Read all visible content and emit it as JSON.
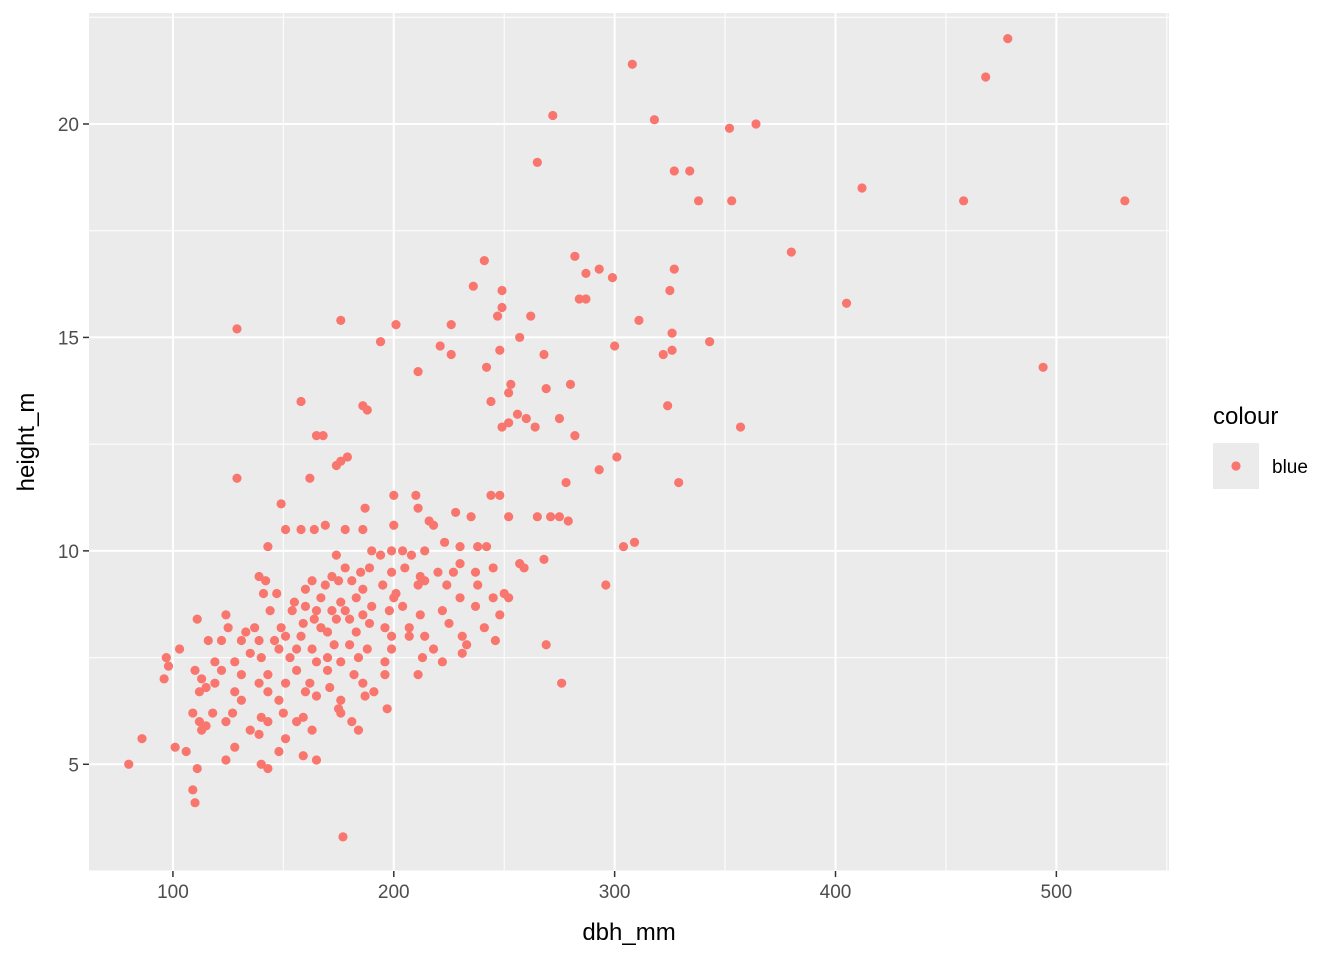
{
  "chart_data": {
    "type": "scatter",
    "xlabel": "dbh_mm",
    "ylabel": "height_m",
    "xlim": [
      62,
      551
    ],
    "ylim": [
      2.5,
      22.6
    ],
    "x_ticks": [
      100,
      200,
      300,
      400,
      500
    ],
    "x_tick_labels": [
      "100",
      "200",
      "300",
      "400",
      "500"
    ],
    "y_ticks": [
      5,
      10,
      15,
      20
    ],
    "y_tick_labels": [
      "5",
      "10",
      "15",
      "20"
    ],
    "grid": true,
    "legend": {
      "title": "colour",
      "placement": "right",
      "entries": [
        {
          "label": "blue",
          "color": "#f8766d"
        }
      ]
    },
    "point_color": "#f8766d",
    "panel_background": "#ebebeb",
    "grid_color": "#ffffff",
    "series": [
      {
        "points": [
          [
            478,
            22.0
          ],
          [
            308,
            21.4
          ],
          [
            468,
            21.1
          ],
          [
            272,
            20.2
          ],
          [
            318,
            20.1
          ],
          [
            364,
            20.0
          ],
          [
            352,
            19.9
          ],
          [
            265,
            19.1
          ],
          [
            327,
            18.9
          ],
          [
            334,
            18.9
          ],
          [
            412,
            18.5
          ],
          [
            338,
            18.2
          ],
          [
            353,
            18.2
          ],
          [
            458,
            18.2
          ],
          [
            531,
            18.2
          ],
          [
            380,
            17.0
          ],
          [
            282,
            16.9
          ],
          [
            241,
            16.8
          ],
          [
            293,
            16.6
          ],
          [
            327,
            16.6
          ],
          [
            287,
            16.5
          ],
          [
            299,
            16.4
          ],
          [
            236,
            16.2
          ],
          [
            249,
            16.1
          ],
          [
            325,
            16.1
          ],
          [
            284,
            15.9
          ],
          [
            287,
            15.9
          ],
          [
            405,
            15.8
          ],
          [
            249,
            15.7
          ],
          [
            247,
            15.5
          ],
          [
            262,
            15.5
          ],
          [
            311,
            15.4
          ],
          [
            176,
            15.4
          ],
          [
            201,
            15.3
          ],
          [
            226,
            15.3
          ],
          [
            129,
            15.2
          ],
          [
            326,
            15.1
          ],
          [
            257,
            15.0
          ],
          [
            194,
            14.9
          ],
          [
            343,
            14.9
          ],
          [
            300,
            14.8
          ],
          [
            221,
            14.8
          ],
          [
            326,
            14.7
          ],
          [
            248,
            14.7
          ],
          [
            268,
            14.6
          ],
          [
            226,
            14.6
          ],
          [
            322,
            14.6
          ],
          [
            242,
            14.3
          ],
          [
            211,
            14.2
          ],
          [
            494,
            14.3
          ],
          [
            280,
            13.9
          ],
          [
            253,
            13.9
          ],
          [
            252,
            13.7
          ],
          [
            269,
            13.8
          ],
          [
            158,
            13.5
          ],
          [
            244,
            13.5
          ],
          [
            186,
            13.4
          ],
          [
            188,
            13.3
          ],
          [
            324,
            13.4
          ],
          [
            256,
            13.2
          ],
          [
            260,
            13.1
          ],
          [
            275,
            13.1
          ],
          [
            357,
            12.9
          ],
          [
            252,
            13.0
          ],
          [
            249,
            12.9
          ],
          [
            264,
            12.9
          ],
          [
            168,
            12.7
          ],
          [
            165,
            12.7
          ],
          [
            282,
            12.7
          ],
          [
            301,
            12.2
          ],
          [
            179,
            12.2
          ],
          [
            176,
            12.1
          ],
          [
            174,
            12.0
          ],
          [
            293,
            11.9
          ],
          [
            162,
            11.7
          ],
          [
            129,
            11.7
          ],
          [
            329,
            11.6
          ],
          [
            278,
            11.6
          ],
          [
            149,
            11.1
          ],
          [
            200,
            11.3
          ],
          [
            210,
            11.3
          ],
          [
            244,
            11.3
          ],
          [
            248,
            11.3
          ],
          [
            211,
            11.0
          ],
          [
            187,
            11.0
          ],
          [
            228,
            10.9
          ],
          [
            235,
            10.8
          ],
          [
            265,
            10.8
          ],
          [
            271,
            10.8
          ],
          [
            275,
            10.8
          ],
          [
            252,
            10.8
          ],
          [
            279,
            10.7
          ],
          [
            218,
            10.6
          ],
          [
            216,
            10.7
          ],
          [
            200,
            10.6
          ],
          [
            169,
            10.6
          ],
          [
            178,
            10.5
          ],
          [
            151,
            10.5
          ],
          [
            164,
            10.5
          ],
          [
            158,
            10.5
          ],
          [
            186,
            10.5
          ],
          [
            309,
            10.2
          ],
          [
            304,
            10.1
          ],
          [
            238,
            10.1
          ],
          [
            223,
            10.2
          ],
          [
            230,
            10.1
          ],
          [
            143,
            10.1
          ],
          [
            204,
            10.0
          ],
          [
            199,
            10.0
          ],
          [
            208,
            9.9
          ],
          [
            242,
            10.1
          ],
          [
            174,
            9.9
          ],
          [
            190,
            10.0
          ],
          [
            214,
            10.0
          ],
          [
            194,
            9.9
          ],
          [
            268,
            9.8
          ],
          [
            230,
            9.7
          ],
          [
            259,
            9.6
          ],
          [
            257,
            9.7
          ],
          [
            245,
            9.6
          ],
          [
            237,
            9.5
          ],
          [
            220,
            9.5
          ],
          [
            227,
            9.5
          ],
          [
            178,
            9.6
          ],
          [
            189,
            9.6
          ],
          [
            199,
            9.5
          ],
          [
            205,
            9.6
          ],
          [
            212,
            9.4
          ],
          [
            185,
            9.5
          ],
          [
            172,
            9.4
          ],
          [
            296,
            9.2
          ],
          [
            250,
            9.0
          ],
          [
            214,
            9.3
          ],
          [
            211,
            9.2
          ],
          [
            169,
            9.2
          ],
          [
            175,
            9.3
          ],
          [
            181,
            9.3
          ],
          [
            224,
            9.2
          ],
          [
            238,
            9.2
          ],
          [
            139,
            9.4
          ],
          [
            142,
            9.3
          ],
          [
            163,
            9.3
          ],
          [
            195,
            9.2
          ],
          [
            186,
            9.1
          ],
          [
            201,
            9.0
          ],
          [
            147,
            9.0
          ],
          [
            160,
            9.1
          ],
          [
            245,
            8.9
          ],
          [
            230,
            8.9
          ],
          [
            252,
            8.9
          ],
          [
            200,
            8.9
          ],
          [
            190,
            8.7
          ],
          [
            183,
            8.9
          ],
          [
            176,
            8.8
          ],
          [
            167,
            8.9
          ],
          [
            155,
            8.8
          ],
          [
            141,
            9.0
          ],
          [
            172,
            8.6
          ],
          [
            160,
            8.7
          ],
          [
            165,
            8.6
          ],
          [
            178,
            8.6
          ],
          [
            186,
            8.5
          ],
          [
            198,
            8.6
          ],
          [
            204,
            8.7
          ],
          [
            212,
            8.5
          ],
          [
            222,
            8.6
          ],
          [
            237,
            8.7
          ],
          [
            248,
            8.5
          ],
          [
            180,
            8.4
          ],
          [
            164,
            8.4
          ],
          [
            154,
            8.6
          ],
          [
            144,
            8.6
          ],
          [
            124,
            8.5
          ],
          [
            111,
            8.4
          ],
          [
            125,
            8.2
          ],
          [
            133,
            8.1
          ],
          [
            137,
            8.2
          ],
          [
            149,
            8.2
          ],
          [
            159,
            8.3
          ],
          [
            167,
            8.2
          ],
          [
            174,
            8.4
          ],
          [
            189,
            8.3
          ],
          [
            196,
            8.2
          ],
          [
            207,
            8.2
          ],
          [
            225,
            8.3
          ],
          [
            241,
            8.2
          ],
          [
            183,
            8.1
          ],
          [
            170,
            8.1
          ],
          [
            158,
            8.0
          ],
          [
            151,
            8.0
          ],
          [
            146,
            7.9
          ],
          [
            139,
            7.9
          ],
          [
            131,
            7.9
          ],
          [
            122,
            7.9
          ],
          [
            116,
            7.9
          ],
          [
            199,
            8.0
          ],
          [
            207,
            8.0
          ],
          [
            214,
            8.0
          ],
          [
            231,
            8.0
          ],
          [
            246,
            7.9
          ],
          [
            269,
            7.8
          ],
          [
            180,
            7.8
          ],
          [
            173,
            7.8
          ],
          [
            163,
            7.7
          ],
          [
            156,
            7.7
          ],
          [
            148,
            7.7
          ],
          [
            135,
            7.6
          ],
          [
            103,
            7.7
          ],
          [
            97,
            7.5
          ],
          [
            188,
            7.7
          ],
          [
            199,
            7.7
          ],
          [
            218,
            7.7
          ],
          [
            233,
            7.8
          ],
          [
            184,
            7.5
          ],
          [
            170,
            7.5
          ],
          [
            153,
            7.5
          ],
          [
            140,
            7.5
          ],
          [
            128,
            7.4
          ],
          [
            119,
            7.4
          ],
          [
            176,
            7.4
          ],
          [
            165,
            7.4
          ],
          [
            196,
            7.4
          ],
          [
            213,
            7.5
          ],
          [
            231,
            7.6
          ],
          [
            98,
            7.3
          ],
          [
            110,
            7.2
          ],
          [
            122,
            7.2
          ],
          [
            131,
            7.1
          ],
          [
            143,
            7.1
          ],
          [
            156,
            7.2
          ],
          [
            170,
            7.2
          ],
          [
            182,
            7.1
          ],
          [
            196,
            7.1
          ],
          [
            222,
            7.4
          ],
          [
            113,
            7.0
          ],
          [
            119,
            6.9
          ],
          [
            139,
            6.9
          ],
          [
            151,
            6.9
          ],
          [
            162,
            6.9
          ],
          [
            186,
            6.9
          ],
          [
            211,
            7.1
          ],
          [
            96,
            7.0
          ],
          [
            115,
            6.8
          ],
          [
            128,
            6.7
          ],
          [
            143,
            6.7
          ],
          [
            160,
            6.7
          ],
          [
            171,
            6.8
          ],
          [
            191,
            6.7
          ],
          [
            276,
            6.9
          ],
          [
            112,
            6.7
          ],
          [
            131,
            6.5
          ],
          [
            148,
            6.5
          ],
          [
            165,
            6.6
          ],
          [
            176,
            6.5
          ],
          [
            187,
            6.6
          ],
          [
            109,
            6.2
          ],
          [
            118,
            6.2
          ],
          [
            127,
            6.2
          ],
          [
            140,
            6.1
          ],
          [
            150,
            6.2
          ],
          [
            159,
            6.1
          ],
          [
            175,
            6.3
          ],
          [
            197,
            6.3
          ],
          [
            112,
            6.0
          ],
          [
            124,
            6.0
          ],
          [
            143,
            6.0
          ],
          [
            156,
            6.0
          ],
          [
            176,
            6.2
          ],
          [
            181,
            6.0
          ],
          [
            113,
            5.8
          ],
          [
            115,
            5.9
          ],
          [
            135,
            5.8
          ],
          [
            163,
            5.8
          ],
          [
            184,
            5.8
          ],
          [
            86,
            5.6
          ],
          [
            101,
            5.4
          ],
          [
            106,
            5.3
          ],
          [
            128,
            5.4
          ],
          [
            151,
            5.6
          ],
          [
            148,
            5.3
          ],
          [
            139,
            5.7
          ],
          [
            165,
            5.1
          ],
          [
            159,
            5.2
          ],
          [
            124,
            5.1
          ],
          [
            140,
            5.0
          ],
          [
            111,
            4.9
          ],
          [
            80,
            5.0
          ],
          [
            143,
            4.9
          ],
          [
            109,
            4.4
          ],
          [
            110,
            4.1
          ],
          [
            177,
            3.3
          ]
        ]
      }
    ]
  }
}
